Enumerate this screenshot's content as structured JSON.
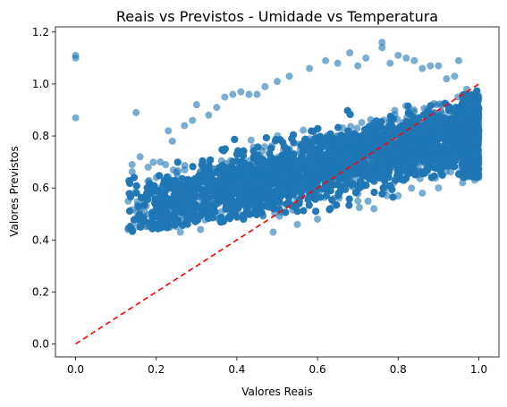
{
  "chart_data": {
    "type": "scatter",
    "title": "Reais vs Previstos - Umidade vs Temperatura",
    "xlabel": "Valores Reais",
    "ylabel": "Valores Previstos",
    "xlim": [
      -0.05,
      1.05
    ],
    "ylim": [
      -0.05,
      1.22
    ],
    "xticks": [
      "0.0",
      "0.2",
      "0.4",
      "0.6",
      "0.8",
      "1.0"
    ],
    "yticks": [
      "0.0",
      "0.2",
      "0.4",
      "0.6",
      "0.8",
      "1.0",
      "1.2"
    ],
    "grid": false,
    "point_color": "#1f77b4",
    "point_alpha": 0.6,
    "reference_line": {
      "x": [
        0.0,
        1.0
      ],
      "y": [
        0.0,
        1.0
      ],
      "color": "#ff0000",
      "style": "dashed"
    },
    "series": [
      {
        "values_xy": [
          [
            0.0,
            1.11
          ],
          [
            0.0,
            1.1
          ],
          [
            0.0,
            0.87
          ],
          [
            0.15,
            0.89
          ],
          [
            0.13,
            0.44
          ],
          [
            0.14,
            0.69
          ],
          [
            0.15,
            0.45
          ],
          [
            0.16,
            0.46
          ],
          [
            0.17,
            0.49
          ],
          [
            0.16,
            0.72
          ],
          [
            0.17,
            0.51
          ],
          [
            0.18,
            0.68
          ],
          [
            0.19,
            0.47
          ],
          [
            0.19,
            0.6
          ],
          [
            0.2,
            0.64
          ],
          [
            0.21,
            0.7
          ],
          [
            0.22,
            0.45
          ],
          [
            0.23,
            0.82
          ],
          [
            0.24,
            0.78
          ],
          [
            0.25,
            0.66
          ],
          [
            0.26,
            0.43
          ],
          [
            0.27,
            0.84
          ],
          [
            0.29,
            0.86
          ],
          [
            0.3,
            0.92
          ],
          [
            0.31,
            0.44
          ],
          [
            0.33,
            0.88
          ],
          [
            0.35,
            0.91
          ],
          [
            0.37,
            0.95
          ],
          [
            0.39,
            0.96
          ],
          [
            0.41,
            0.97
          ],
          [
            0.43,
            0.96
          ],
          [
            0.45,
            0.96
          ],
          [
            0.47,
            0.99
          ],
          [
            0.49,
            0.43
          ],
          [
            0.5,
            1.01
          ],
          [
            0.53,
            1.03
          ],
          [
            0.55,
            0.46
          ],
          [
            0.58,
            1.06
          ],
          [
            0.6,
            0.48
          ],
          [
            0.62,
            1.09
          ],
          [
            0.65,
            1.08
          ],
          [
            0.68,
            1.12
          ],
          [
            0.7,
            1.07
          ],
          [
            0.72,
            1.1
          ],
          [
            0.74,
            0.52
          ],
          [
            0.76,
            1.16
          ],
          [
            0.76,
            1.14
          ],
          [
            0.78,
            1.08
          ],
          [
            0.8,
            1.11
          ],
          [
            0.82,
            1.1
          ],
          [
            0.84,
            1.09
          ],
          [
            0.86,
            1.06
          ],
          [
            0.88,
            1.07
          ],
          [
            0.9,
            1.07
          ],
          [
            0.92,
            1.02
          ],
          [
            0.94,
            1.03
          ],
          [
            0.95,
            1.09
          ],
          [
            0.97,
            0.98
          ],
          [
            0.99,
            0.63
          ],
          [
            1.0,
            0.64
          ],
          [
            1.0,
            0.95
          ],
          [
            1.0,
            0.8
          ],
          [
            0.64,
            0.53
          ],
          [
            0.7,
            0.55
          ],
          [
            0.8,
            0.57
          ],
          [
            0.86,
            0.58
          ],
          [
            0.9,
            0.6
          ],
          [
            0.96,
            0.62
          ]
        ]
      }
    ]
  }
}
